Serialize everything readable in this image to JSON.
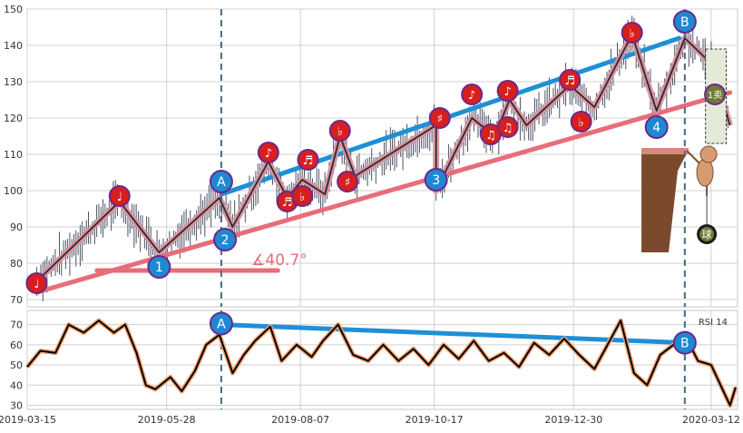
{
  "chart_data": [
    {
      "type": "line",
      "panel": "price",
      "ylim": [
        68,
        150
      ],
      "yticks": [
        70,
        80,
        90,
        100,
        110,
        120,
        130,
        140,
        150
      ],
      "x_range": [
        "2019-03-15",
        "2020-03-26"
      ],
      "grid": true,
      "series": [
        {
          "values": [
            [
              "2019-03-20",
              75
            ],
            [
              "2019-05-03",
              97
            ],
            [
              "2019-05-24",
              83
            ],
            [
              "2019-06-25",
              98
            ],
            [
              "2019-07-02",
              90
            ],
            [
              "2019-07-21",
              108
            ],
            [
              "2019-07-31",
              98
            ],
            [
              "2019-08-08",
              103
            ],
            [
              "2019-08-20",
              99
            ],
            [
              "2019-08-28",
              115
            ],
            [
              "2019-09-05",
              104
            ],
            [
              "2019-10-18",
              118
            ],
            [
              "2019-10-18",
              100
            ],
            [
              "2019-11-06",
              120
            ],
            [
              "2019-11-18",
              115
            ],
            [
              "2019-11-26",
              125
            ],
            [
              "2019-12-05",
              118
            ],
            [
              "2019-12-28",
              129
            ],
            [
              "2020-01-10",
              123
            ],
            [
              "2020-01-30",
              143
            ],
            [
              "2020-02-12",
              122
            ],
            [
              "2020-02-27",
              142
            ],
            [
              "2020-03-12",
              135
            ],
            [
              "2020-03-22",
              118
            ]
          ]
        }
      ],
      "trendlines": [
        {
          "color": "#1f8fd6",
          "from": [
            "2019-06-26",
            99
          ],
          "to": [
            "2020-02-24",
            142
          ]
        },
        {
          "color": "#e86c7a",
          "from": [
            "2019-03-20",
            72
          ],
          "to": [
            "2020-03-22",
            127
          ]
        },
        {
          "color": "#e86c7a",
          "from": [
            "2019-04-21",
            78
          ],
          "to": [
            "2019-07-26",
            78
          ]
        }
      ],
      "vlines": [
        "2019-06-26",
        "2020-02-27"
      ],
      "annotation": "∡40.7°",
      "markers": [
        {
          "label": "A",
          "kind": "point",
          "x": "2019-06-26",
          "y": 102.5
        },
        {
          "label": "B",
          "kind": "point",
          "x": "2020-02-27",
          "y": 146.5
        },
        {
          "label": "1",
          "kind": "point",
          "x": "2019-05-24",
          "y": 79
        },
        {
          "label": "2",
          "kind": "point",
          "x": "2019-06-28",
          "y": 86.5
        },
        {
          "label": "3",
          "kind": "point",
          "x": "2019-10-18",
          "y": 103
        },
        {
          "label": "4",
          "kind": "point",
          "x": "2020-02-12",
          "y": 117.5
        },
        {
          "label": "♩",
          "kind": "note",
          "x": "2019-03-20",
          "y": 74.5
        },
        {
          "label": "♩",
          "kind": "note",
          "x": "2019-05-03",
          "y": 98.5
        },
        {
          "label": "♪",
          "kind": "note",
          "x": "2019-07-21",
          "y": 110.5
        },
        {
          "label": "♬",
          "kind": "note",
          "x": "2019-07-31",
          "y": 97
        },
        {
          "label": "♭",
          "kind": "note",
          "x": "2019-08-08",
          "y": 98.5
        },
        {
          "label": "♬",
          "kind": "note",
          "x": "2019-08-11",
          "y": 108.5
        },
        {
          "label": "♭",
          "kind": "note",
          "x": "2019-08-28",
          "y": 116.5
        },
        {
          "label": "♯",
          "kind": "note",
          "x": "2019-09-01",
          "y": 102.5
        },
        {
          "label": "♯",
          "kind": "note",
          "x": "2019-10-20",
          "y": 120
        },
        {
          "label": "♪",
          "kind": "note",
          "x": "2019-11-06",
          "y": 126.5
        },
        {
          "label": "♫",
          "kind": "note",
          "x": "2019-11-16",
          "y": 115.5
        },
        {
          "label": "♪",
          "kind": "note",
          "x": "2019-11-25",
          "y": 127.5
        },
        {
          "label": "♫",
          "kind": "note",
          "x": "2019-11-25",
          "y": 117.5
        },
        {
          "label": "♬",
          "kind": "note",
          "x": "2019-12-28",
          "y": 130.5
        },
        {
          "label": "♭",
          "kind": "note",
          "x": "2020-01-03",
          "y": 119
        },
        {
          "label": "♭",
          "kind": "note",
          "x": "2020-01-30",
          "y": 143.5
        }
      ],
      "box_label": "1卖",
      "ball_label": "球"
    },
    {
      "type": "line",
      "panel": "rsi",
      "legend": "RSI 14",
      "ylim": [
        28,
        77
      ],
      "yticks": [
        30,
        40,
        50,
        60,
        70
      ],
      "grid": true,
      "series": [
        {
          "name": "RSI 14",
          "values": [
            [
              "2019-03-15",
              49
            ],
            [
              "2019-03-22",
              57
            ],
            [
              "2019-03-30",
              56
            ],
            [
              "2019-04-06",
              70
            ],
            [
              "2019-04-14",
              66
            ],
            [
              "2019-04-22",
              72
            ],
            [
              "2019-04-30",
              66
            ],
            [
              "2019-05-06",
              70
            ],
            [
              "2019-05-12",
              56
            ],
            [
              "2019-05-17",
              40
            ],
            [
              "2019-05-22",
              38
            ],
            [
              "2019-05-30",
              44
            ],
            [
              "2019-06-05",
              37
            ],
            [
              "2019-06-12",
              47
            ],
            [
              "2019-06-18",
              60
            ],
            [
              "2019-06-25",
              65
            ],
            [
              "2019-07-02",
              46
            ],
            [
              "2019-07-08",
              55
            ],
            [
              "2019-07-14",
              62
            ],
            [
              "2019-07-22",
              69
            ],
            [
              "2019-07-28",
              52
            ],
            [
              "2019-08-05",
              60
            ],
            [
              "2019-08-13",
              54
            ],
            [
              "2019-08-19",
              62
            ],
            [
              "2019-08-27",
              70
            ],
            [
              "2019-09-04",
              55
            ],
            [
              "2019-09-12",
              52
            ],
            [
              "2019-09-20",
              60
            ],
            [
              "2019-09-28",
              52
            ],
            [
              "2019-10-06",
              58
            ],
            [
              "2019-10-14",
              50
            ],
            [
              "2019-10-22",
              60
            ],
            [
              "2019-10-30",
              53
            ],
            [
              "2019-11-07",
              62
            ],
            [
              "2019-11-15",
              52
            ],
            [
              "2019-11-23",
              56
            ],
            [
              "2019-12-01",
              49
            ],
            [
              "2019-12-09",
              61
            ],
            [
              "2019-12-17",
              55
            ],
            [
              "2019-12-25",
              63
            ],
            [
              "2020-01-02",
              55
            ],
            [
              "2020-01-10",
              48
            ],
            [
              "2020-01-17",
              60
            ],
            [
              "2020-01-24",
              72
            ],
            [
              "2020-01-31",
              46
            ],
            [
              "2020-02-07",
              40
            ],
            [
              "2020-02-14",
              55
            ],
            [
              "2020-02-21",
              60
            ],
            [
              "2020-02-27",
              65
            ],
            [
              "2020-03-05",
              52
            ],
            [
              "2020-03-12",
              50
            ],
            [
              "2020-03-18",
              38
            ],
            [
              "2020-03-22",
              30
            ],
            [
              "2020-03-25",
              39
            ]
          ]
        }
      ],
      "trendlines": [
        {
          "color": "#1f8fd6",
          "from": [
            "2019-06-26",
            70
          ],
          "to": [
            "2020-02-27",
            61
          ]
        }
      ],
      "vlines": [
        "2019-06-26",
        "2020-02-27"
      ],
      "markers": [
        {
          "label": "A",
          "kind": "point",
          "x": "2019-06-26",
          "y": 70.5
        },
        {
          "label": "B",
          "kind": "point",
          "x": "2020-02-27",
          "y": 61
        }
      ]
    }
  ],
  "xticks": [
    "2019-03-15",
    "2019-05-28",
    "2019-08-07",
    "2019-10-17",
    "2019-12-30",
    "2020-03-12"
  ],
  "colors": {
    "price_line": "#2a2a2a",
    "price_halo": "#d9909e",
    "uptrend": "#1f8fd6",
    "support": "#e86c7a",
    "rsi_line": "#000000",
    "rsi_halo": "#f0a070",
    "marker_blue": "#1e88d2",
    "note_red": "#d91e1e",
    "marker_edge": "#6a2a8a",
    "grid": "#d0d0d0",
    "vline": "#4a6880"
  }
}
